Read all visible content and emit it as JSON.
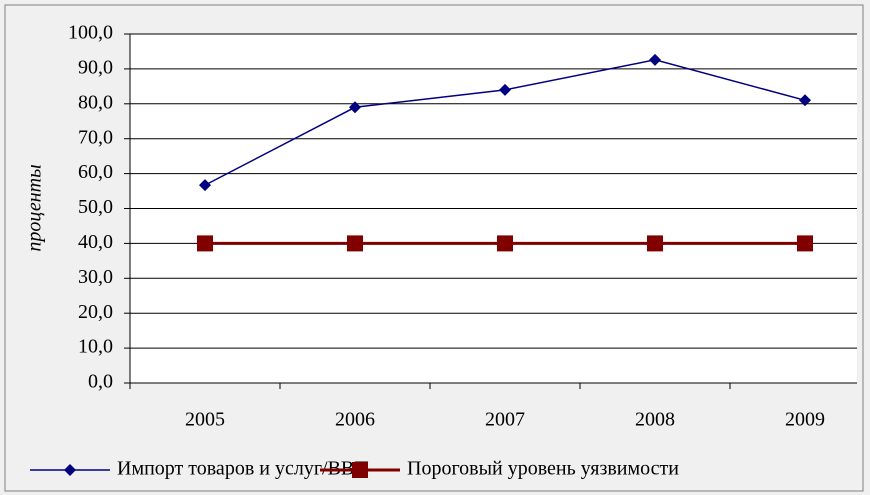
{
  "chart_data": {
    "type": "line",
    "ylabel": "проценты",
    "categories": [
      "2005",
      "2006",
      "2007",
      "2008",
      "2009"
    ],
    "series": [
      {
        "name": "Импорт товаров и услуг/ВВП",
        "color": "#000080",
        "marker": "diamond",
        "values": [
          56.7,
          79.0,
          84.0,
          92.6,
          81.0
        ]
      },
      {
        "name": "Пороговый уровень уязвимости",
        "color": "#800000",
        "marker": "square",
        "values": [
          40,
          40,
          40,
          40,
          40
        ]
      }
    ],
    "ylim": [
      0,
      100
    ],
    "yticks": [
      {
        "value": 0,
        "label": "0,0"
      },
      {
        "value": 10,
        "label": "10,0"
      },
      {
        "value": 20,
        "label": "20,0"
      },
      {
        "value": 30,
        "label": "30,0"
      },
      {
        "value": 40,
        "label": "40,0"
      },
      {
        "value": 50,
        "label": "50,0"
      },
      {
        "value": 60,
        "label": "60,0"
      },
      {
        "value": 70,
        "label": "70,0"
      },
      {
        "value": 80,
        "label": "80,0"
      },
      {
        "value": 90,
        "label": "90,0"
      },
      {
        "value": 100,
        "label": "100,0"
      }
    ],
    "grid": true,
    "legend": "bottom"
  }
}
